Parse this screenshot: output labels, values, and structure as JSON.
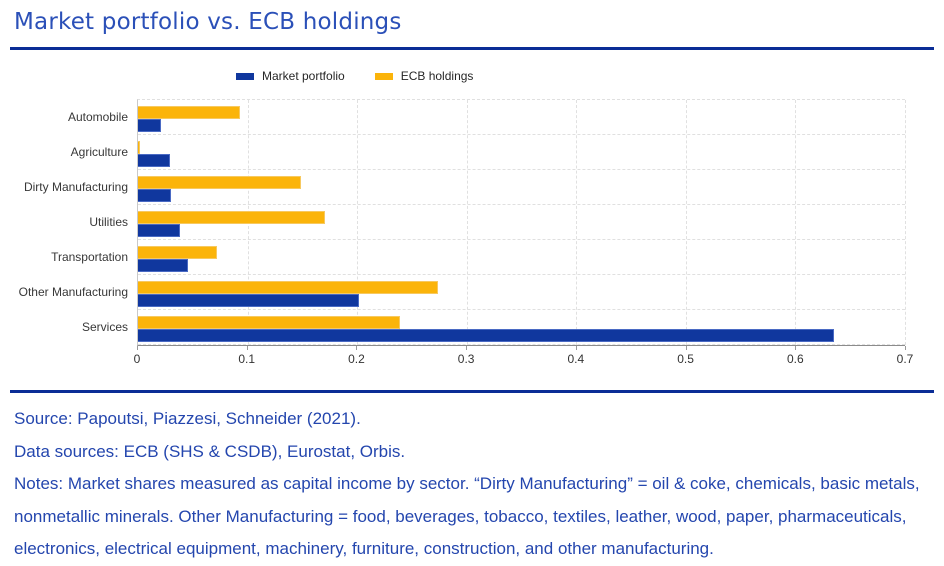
{
  "page": {
    "title": "Market portfolio vs. ECB holdings",
    "rule_color": "#0B2D96"
  },
  "legend": {
    "items": [
      {
        "label": "Market portfolio",
        "color": "#10379E"
      },
      {
        "label": "ECB holdings",
        "color": "#FBB40A"
      }
    ]
  },
  "chart_data": {
    "type": "bar",
    "orientation": "horizontal",
    "title": "Market portfolio vs. ECB holdings",
    "categories": [
      "Automobile",
      "Agriculture",
      "Dirty Manufacturing",
      "Utilities",
      "Transportation",
      "Other Manufacturing",
      "Services"
    ],
    "series": [
      {
        "name": "Market portfolio",
        "color": "#10379E",
        "values": [
          0.021,
          0.029,
          0.03,
          0.038,
          0.046,
          0.202,
          0.635
        ]
      },
      {
        "name": "ECB holdings",
        "color": "#FBB40A",
        "values": [
          0.093,
          0.002,
          0.149,
          0.171,
          0.072,
          0.274,
          0.239
        ]
      }
    ],
    "xlim": [
      0,
      0.7
    ],
    "x_ticks": [
      "0",
      "0.1",
      "0.2",
      "0.3",
      "0.4",
      "0.5",
      "0.6",
      "0.7"
    ],
    "grid": "dashed",
    "legend_position": "top",
    "bar_order_per_category": [
      "ECB holdings",
      "Market portfolio"
    ]
  },
  "footer": {
    "source": "Source: Papoutsi, Piazzesi, Schneider (2021).",
    "data_sources": "Data sources: ECB (SHS & CSDB), Eurostat, Orbis.",
    "notes": "Notes: Market shares measured as capital income by sector. “Dirty Manufacturing” = oil & coke, chemicals, basic metals, nonmetallic minerals. Other Manufacturing = food, beverages, tobacco, textiles, leather, wood, paper, pharmaceuticals, electronics, electrical equipment, machinery, furniture, construction, and other manufacturing."
  }
}
